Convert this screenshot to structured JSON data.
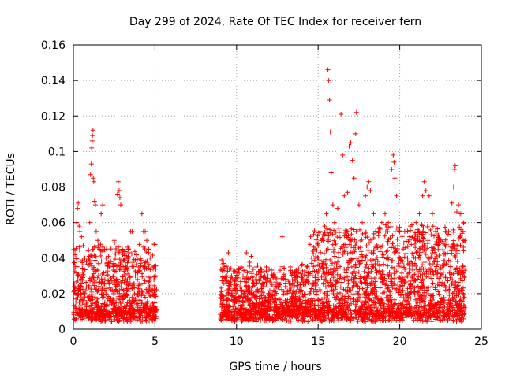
{
  "chart_data": {
    "type": "scatter",
    "title": "Day 299 of 2024, Rate Of TEC Index for receiver fern",
    "xlabel": "GPS time / hours",
    "ylabel": "ROTI / TECUs",
    "xlim": [
      0,
      25
    ],
    "ylim": [
      0,
      0.16
    ],
    "x_ticks": [
      {
        "value": 0,
        "label": "0"
      },
      {
        "value": 5,
        "label": "5"
      },
      {
        "value": 10,
        "label": "10"
      },
      {
        "value": 15,
        "label": "15"
      },
      {
        "value": 20,
        "label": "20"
      },
      {
        "value": 25,
        "label": "25"
      }
    ],
    "y_ticks": [
      {
        "value": 0,
        "label": "0"
      },
      {
        "value": 0.02,
        "label": "0.02"
      },
      {
        "value": 0.04,
        "label": "0.04"
      },
      {
        "value": 0.06,
        "label": "0.06"
      },
      {
        "value": 0.08,
        "label": "0.08"
      },
      {
        "value": 0.1,
        "label": "0.1"
      },
      {
        "value": 0.12,
        "label": "0.12"
      },
      {
        "value": 0.14,
        "label": "0.14"
      },
      {
        "value": 0.16,
        "label": "0.16"
      }
    ],
    "grid": true,
    "marker": "plus",
    "marker_color": "#ff0000",
    "data_gap_hours": [
      5.1,
      9.0
    ],
    "points": [
      [
        0.1,
        0.034
      ],
      [
        0.2,
        0.06
      ],
      [
        0.25,
        0.068
      ],
      [
        0.3,
        0.071
      ],
      [
        0.35,
        0.058
      ],
      [
        0.4,
        0.055
      ],
      [
        0.5,
        0.052
      ],
      [
        0.6,
        0.047
      ],
      [
        0.7,
        0.04
      ],
      [
        0.8,
        0.038
      ],
      [
        0.9,
        0.044
      ],
      [
        1.0,
        0.06
      ],
      [
        1.05,
        0.087
      ],
      [
        1.1,
        0.093
      ],
      [
        1.12,
        0.102
      ],
      [
        1.15,
        0.106
      ],
      [
        1.17,
        0.109
      ],
      [
        1.2,
        0.112
      ],
      [
        1.22,
        0.085
      ],
      [
        1.25,
        0.083
      ],
      [
        1.3,
        0.072
      ],
      [
        1.35,
        0.07
      ],
      [
        1.4,
        0.055
      ],
      [
        1.5,
        0.05
      ],
      [
        1.6,
        0.045
      ],
      [
        1.7,
        0.065
      ],
      [
        1.8,
        0.07
      ],
      [
        1.9,
        0.045
      ],
      [
        2.0,
        0.04
      ],
      [
        2.2,
        0.035
      ],
      [
        2.5,
        0.05
      ],
      [
        2.7,
        0.076
      ],
      [
        2.75,
        0.083
      ],
      [
        2.8,
        0.078
      ],
      [
        2.85,
        0.074
      ],
      [
        2.9,
        0.07
      ],
      [
        3.0,
        0.045
      ],
      [
        3.2,
        0.036
      ],
      [
        3.3,
        0.035
      ],
      [
        3.5,
        0.055
      ],
      [
        3.6,
        0.055
      ],
      [
        3.8,
        0.03
      ],
      [
        4.0,
        0.035
      ],
      [
        4.2,
        0.065
      ],
      [
        4.3,
        0.055
      ],
      [
        4.4,
        0.055
      ],
      [
        4.5,
        0.05
      ],
      [
        4.7,
        0.04
      ],
      [
        4.9,
        0.035
      ],
      [
        5.0,
        0.03
      ],
      [
        9.1,
        0.039
      ],
      [
        9.2,
        0.037
      ],
      [
        9.3,
        0.029
      ],
      [
        9.5,
        0.043
      ],
      [
        9.7,
        0.03
      ],
      [
        10.0,
        0.025
      ],
      [
        10.3,
        0.035
      ],
      [
        10.6,
        0.043
      ],
      [
        10.9,
        0.041
      ],
      [
        11.2,
        0.035
      ],
      [
        11.5,
        0.03
      ],
      [
        11.8,
        0.028
      ],
      [
        12.2,
        0.03
      ],
      [
        12.6,
        0.032
      ],
      [
        12.8,
        0.052
      ],
      [
        13.0,
        0.03
      ],
      [
        13.3,
        0.035
      ],
      [
        13.6,
        0.028
      ],
      [
        14.0,
        0.03
      ],
      [
        14.3,
        0.035
      ],
      [
        14.6,
        0.04
      ],
      [
        14.8,
        0.045
      ],
      [
        15.0,
        0.047
      ],
      [
        15.2,
        0.05
      ],
      [
        15.4,
        0.058
      ],
      [
        15.5,
        0.065
      ],
      [
        15.6,
        0.146
      ],
      [
        15.65,
        0.14
      ],
      [
        15.7,
        0.129
      ],
      [
        15.75,
        0.111
      ],
      [
        15.8,
        0.088
      ],
      [
        15.9,
        0.07
      ],
      [
        16.0,
        0.06
      ],
      [
        16.2,
        0.068
      ],
      [
        16.4,
        0.121
      ],
      [
        16.5,
        0.098
      ],
      [
        16.6,
        0.075
      ],
      [
        16.8,
        0.077
      ],
      [
        16.9,
        0.103
      ],
      [
        17.0,
        0.105
      ],
      [
        17.1,
        0.095
      ],
      [
        17.2,
        0.085
      ],
      [
        17.3,
        0.11
      ],
      [
        17.35,
        0.122
      ],
      [
        17.5,
        0.07
      ],
      [
        17.7,
        0.06
      ],
      [
        17.9,
        0.075
      ],
      [
        18.0,
        0.08
      ],
      [
        18.1,
        0.083
      ],
      [
        18.2,
        0.078
      ],
      [
        18.4,
        0.065
      ],
      [
        18.7,
        0.055
      ],
      [
        18.9,
        0.06
      ],
      [
        19.1,
        0.065
      ],
      [
        19.3,
        0.06
      ],
      [
        19.5,
        0.09
      ],
      [
        19.6,
        0.098
      ],
      [
        19.65,
        0.094
      ],
      [
        19.7,
        0.085
      ],
      [
        19.8,
        0.075
      ],
      [
        20.0,
        0.055
      ],
      [
        20.3,
        0.055
      ],
      [
        20.6,
        0.052
      ],
      [
        21.0,
        0.06
      ],
      [
        21.2,
        0.065
      ],
      [
        21.4,
        0.075
      ],
      [
        21.5,
        0.083
      ],
      [
        21.6,
        0.078
      ],
      [
        21.8,
        0.075
      ],
      [
        22.0,
        0.065
      ],
      [
        22.2,
        0.055
      ],
      [
        22.5,
        0.05
      ],
      [
        22.8,
        0.055
      ],
      [
        23.0,
        0.055
      ],
      [
        23.2,
        0.071
      ],
      [
        23.3,
        0.08
      ],
      [
        23.35,
        0.09
      ],
      [
        23.4,
        0.092
      ],
      [
        23.5,
        0.066
      ],
      [
        23.6,
        0.07
      ],
      [
        23.7,
        0.065
      ],
      [
        23.8,
        0.065
      ],
      [
        23.9,
        0.06
      ],
      [
        24.0,
        0.05
      ]
    ]
  }
}
